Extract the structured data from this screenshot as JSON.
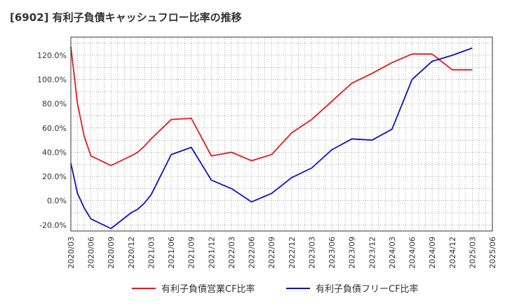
{
  "chart_data": {
    "type": "line",
    "title": "[6902]  有利子負債キャッシュフロー比率の推移",
    "xlabel": "",
    "ylabel": "",
    "ylim": [
      -25,
      135
    ],
    "yticks": [
      -20,
      0,
      20,
      40,
      60,
      80,
      100,
      120
    ],
    "ytick_labels": [
      "-20.0%",
      "0.0%",
      "20.0%",
      "40.0%",
      "60.0%",
      "80.0%",
      "100.0%",
      "120.0%"
    ],
    "x_tick_labels": [
      "2020/03",
      "2020/06",
      "2020/09",
      "2020/12",
      "2021/03",
      "2021/06",
      "2021/09",
      "2021/12",
      "2022/03",
      "2022/06",
      "2022/09",
      "2022/12",
      "2023/03",
      "2023/06",
      "2023/09",
      "2023/12",
      "2024/03",
      "2024/06",
      "2024/09",
      "2024/12",
      "2025/03",
      "2025/06"
    ],
    "grid": true,
    "legend_position": "bottom",
    "series": [
      {
        "name": "有利子負債営業CF比率",
        "color": "#e41a1c",
        "points": [
          [
            "2020/03",
            127
          ],
          [
            "2020/04",
            80
          ],
          [
            "2020/05",
            53
          ],
          [
            "2020/06",
            37
          ],
          [
            "2020/09",
            29
          ],
          [
            "2020/12",
            37
          ],
          [
            "2021/01",
            40
          ],
          [
            "2021/02",
            45
          ],
          [
            "2021/03",
            51
          ],
          [
            "2021/06",
            67
          ],
          [
            "2021/09",
            68
          ],
          [
            "2021/12",
            37
          ],
          [
            "2022/03",
            40
          ],
          [
            "2022/06",
            33
          ],
          [
            "2022/09",
            38
          ],
          [
            "2022/12",
            56
          ],
          [
            "2023/03",
            67
          ],
          [
            "2023/06",
            82
          ],
          [
            "2023/09",
            97
          ],
          [
            "2023/12",
            105
          ],
          [
            "2024/03",
            114
          ],
          [
            "2024/06",
            121
          ],
          [
            "2024/09",
            121
          ],
          [
            "2024/12",
            108
          ],
          [
            "2025/03",
            108
          ]
        ]
      },
      {
        "name": "有利子負債フリーCF比率",
        "color": "#1010c8",
        "points": [
          [
            "2020/03",
            31
          ],
          [
            "2020/04",
            6
          ],
          [
            "2020/05",
            -6
          ],
          [
            "2020/06",
            -15
          ],
          [
            "2020/09",
            -23
          ],
          [
            "2020/12",
            -10
          ],
          [
            "2021/01",
            -7
          ],
          [
            "2021/02",
            -2
          ],
          [
            "2021/03",
            5
          ],
          [
            "2021/06",
            38
          ],
          [
            "2021/09",
            44
          ],
          [
            "2021/12",
            17
          ],
          [
            "2022/03",
            10
          ],
          [
            "2022/06",
            -1
          ],
          [
            "2022/09",
            6
          ],
          [
            "2022/12",
            19
          ],
          [
            "2023/03",
            27
          ],
          [
            "2023/06",
            42
          ],
          [
            "2023/09",
            51
          ],
          [
            "2023/12",
            50
          ],
          [
            "2024/03",
            59
          ],
          [
            "2024/06",
            100
          ],
          [
            "2024/09",
            115
          ],
          [
            "2024/12",
            120
          ],
          [
            "2025/03",
            126
          ]
        ]
      }
    ]
  }
}
